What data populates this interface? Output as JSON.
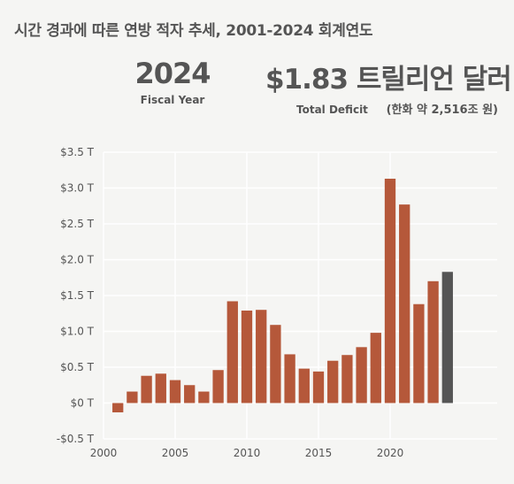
{
  "header": {
    "title": "시간 경과에 따른 연방 적자 추세, 2001-2024 회계연도",
    "year_value": "2024",
    "year_label": "Fiscal Year",
    "deficit_value": "$1.83 트릴리언 달러",
    "deficit_label": "Total Deficit",
    "deficit_approx": "(한화 약 2,516조 원)"
  },
  "colors": {
    "bar": "#b5583a",
    "highlight": "#555555",
    "grid": "#ffffff",
    "background": "#f5f5f3"
  },
  "chart_data": {
    "type": "bar",
    "title": "",
    "xlabel": "",
    "ylabel": "",
    "x": [
      2001,
      2002,
      2003,
      2004,
      2005,
      2006,
      2007,
      2008,
      2009,
      2010,
      2011,
      2012,
      2013,
      2014,
      2015,
      2016,
      2017,
      2018,
      2019,
      2020,
      2021,
      2022,
      2023,
      2024
    ],
    "values": [
      -0.13,
      0.16,
      0.38,
      0.41,
      0.32,
      0.25,
      0.16,
      0.46,
      1.42,
      1.29,
      1.3,
      1.09,
      0.68,
      0.48,
      0.44,
      0.59,
      0.67,
      0.78,
      0.98,
      3.13,
      2.77,
      1.38,
      1.7,
      1.83
    ],
    "highlight_x": 2024,
    "ylim": [
      -0.5,
      3.5
    ],
    "xlim": [
      2000,
      2025
    ],
    "y_ticks": [
      -0.5,
      0,
      0.5,
      1,
      1.5,
      2,
      2.5,
      3,
      3.5
    ],
    "y_tick_labels": [
      "-$0.5 T",
      "$0 T",
      "$0.5 T",
      "$1.0 T",
      "$1.5 T",
      "$2.0 T",
      "$2.5 T",
      "$3.0 T",
      "$3.5 T"
    ],
    "x_ticks": [
      2000,
      2005,
      2010,
      2015,
      2020
    ],
    "x_tick_labels": [
      "2000",
      "2005",
      "2010",
      "2015",
      "2020"
    ],
    "grid": true
  }
}
